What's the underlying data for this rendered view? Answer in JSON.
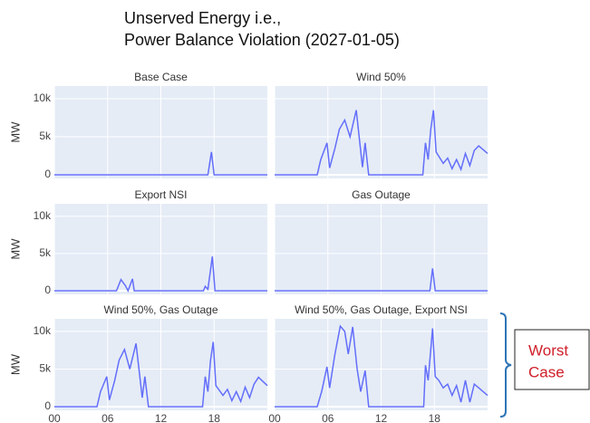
{
  "title": [
    "Unserved Energy i.e.,",
    "Power Balance Violation (2027-01-05)"
  ],
  "annotation": [
    "Worst",
    "Case"
  ],
  "chart_data": [
    {
      "type": "line",
      "title": "Base Case",
      "ylabel": "MW",
      "color": "#636efa",
      "x": [
        0,
        17.3,
        17.7,
        18,
        24
      ],
      "values": [
        0,
        0,
        3000,
        0,
        0
      ],
      "xlim": [
        0,
        24
      ],
      "ylim": [
        -480,
        11670
      ],
      "xgrid": [
        0,
        6,
        12,
        18
      ],
      "yticks": [
        0,
        {
          "value": 5000,
          "label": "5k"
        },
        {
          "value": 10000,
          "label": "10k"
        }
      ]
    },
    {
      "type": "line",
      "title": "Wind 50%",
      "color": "#636efa",
      "x": [
        0,
        4.8,
        5.2,
        5.9,
        6.2,
        6.8,
        7.3,
        7.9,
        8.5,
        9.2,
        9.9,
        10.2,
        10.6,
        16.7,
        17.0,
        17.3,
        17.6,
        17.9,
        18.2,
        19,
        19.5,
        20,
        20.5,
        21,
        21.5,
        22,
        22.5,
        23,
        24
      ],
      "values": [
        0,
        0,
        2000,
        4200,
        900,
        3500,
        6000,
        7200,
        5000,
        8500,
        1000,
        4200,
        0,
        0,
        4200,
        2000,
        6000,
        8500,
        3000,
        1500,
        2200,
        800,
        2000,
        700,
        2800,
        1200,
        3200,
        3800,
        2800
      ],
      "xlim": [
        0,
        24
      ],
      "ylim": [
        -480,
        11670
      ],
      "xgrid": [
        0,
        6,
        12,
        18
      ],
      "ygrid": [
        0,
        5000,
        10000
      ]
    },
    {
      "type": "line",
      "title": "Export NSI",
      "ylabel": "MW",
      "color": "#636efa",
      "x": [
        0,
        7,
        7.5,
        8,
        8.3,
        8.8,
        9,
        16.8,
        17,
        17.3,
        17.8,
        18.1,
        24
      ],
      "values": [
        0,
        0,
        1500,
        700,
        0,
        1600,
        0,
        0,
        600,
        200,
        4600,
        0,
        0
      ],
      "xlim": [
        0,
        24
      ],
      "ylim": [
        -480,
        11670
      ],
      "xgrid": [
        0,
        6,
        12,
        18
      ],
      "yticks": [
        0,
        {
          "value": 5000,
          "label": "5k"
        },
        {
          "value": 10000,
          "label": "10k"
        }
      ]
    },
    {
      "type": "line",
      "title": "Gas Outage",
      "color": "#636efa",
      "x": [
        0,
        17.5,
        17.8,
        18.1,
        24
      ],
      "values": [
        0,
        0,
        3000,
        0,
        0
      ],
      "xlim": [
        0,
        24
      ],
      "ylim": [
        -480,
        11670
      ],
      "xgrid": [
        0,
        6,
        12,
        18
      ],
      "ygrid": [
        0,
        5000,
        10000
      ]
    },
    {
      "type": "line",
      "title": "Wind 50%, Gas Outage",
      "ylabel": "MW",
      "color": "#636efa",
      "x": [
        0,
        4.8,
        5.2,
        5.9,
        6.2,
        6.8,
        7.3,
        7.9,
        8.5,
        9.2,
        9.9,
        10.2,
        10.6,
        16.7,
        17.0,
        17.3,
        17.6,
        17.9,
        18.2,
        19,
        19.5,
        20,
        20.5,
        21,
        21.5,
        22,
        22.5,
        23,
        24
      ],
      "values": [
        0,
        0,
        2000,
        4000,
        900,
        3500,
        6200,
        7600,
        5000,
        8400,
        1200,
        4000,
        0,
        0,
        4000,
        2000,
        6200,
        8600,
        2800,
        1500,
        2300,
        800,
        2000,
        700,
        2600,
        1200,
        3000,
        3900,
        2800
      ],
      "xlim": [
        0,
        24
      ],
      "ylim": [
        -480,
        11670
      ],
      "xgrid": [
        0,
        6,
        12,
        18
      ],
      "xticks": [
        {
          "value": 0,
          "label": "00"
        },
        {
          "value": 6,
          "label": "06"
        },
        12,
        18
      ],
      "yticks": [
        0,
        {
          "value": 5000,
          "label": "5k"
        },
        {
          "value": 10000,
          "label": "10k"
        }
      ]
    },
    {
      "type": "line",
      "title": "Wind 50%, Gas Outage, Export NSI",
      "color": "#636efa",
      "x": [
        0,
        4.8,
        5.3,
        5.9,
        6.2,
        6.8,
        7.4,
        7.9,
        8.3,
        8.8,
        9.3,
        9.7,
        10.2,
        10.6,
        16.8,
        17,
        17.3,
        17.8,
        18.1,
        18.5,
        19,
        19.5,
        20,
        20.5,
        21,
        21.5,
        22,
        22.5,
        23,
        24
      ],
      "values": [
        0,
        0,
        2000,
        5300,
        2500,
        7000,
        10700,
        10000,
        7000,
        10600,
        5000,
        2000,
        4800,
        0,
        0,
        5500,
        3500,
        10400,
        4000,
        3500,
        2500,
        3000,
        1500,
        2800,
        600,
        3500,
        600,
        3000,
        2500,
        1500
      ],
      "xlim": [
        0,
        24
      ],
      "ylim": [
        -480,
        11670
      ],
      "xgrid": [
        0,
        6,
        12,
        18
      ],
      "xticks": [
        {
          "value": 0,
          "label": "00"
        },
        {
          "value": 6,
          "label": "06"
        },
        12,
        18
      ],
      "ygrid": [
        0,
        5000,
        10000
      ]
    }
  ]
}
